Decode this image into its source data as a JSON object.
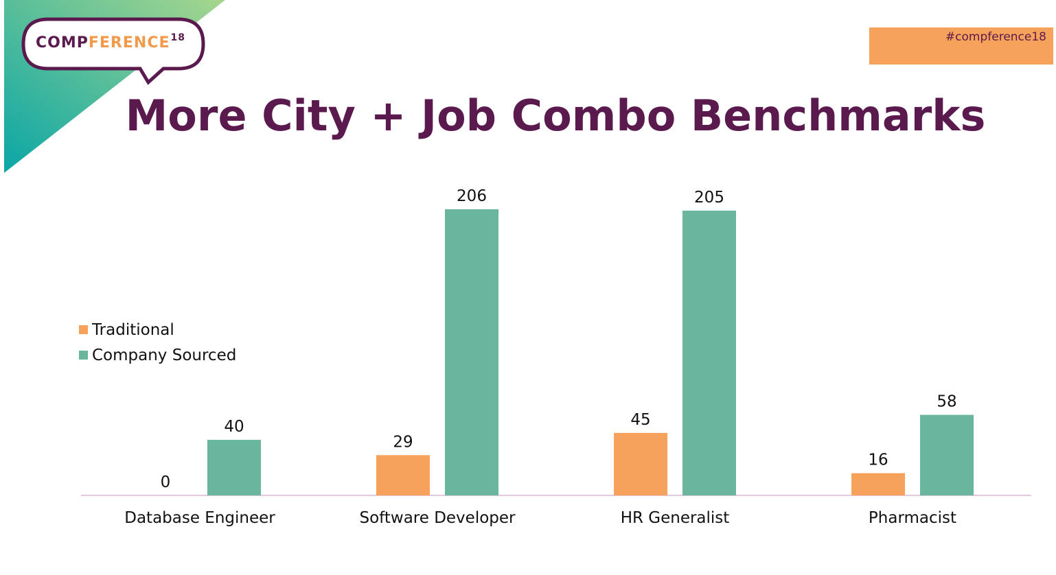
{
  "slide": {
    "title": "More City + Job Combo Benchmarks",
    "hashtag": "#compference18",
    "logo": {
      "part_a": "COMP",
      "part_b": "FERENCE",
      "superscript": "18"
    }
  },
  "colors": {
    "traditional": "#f6a25a",
    "company_sourced": "#69b59d",
    "title": "#5b1a4e",
    "triangle_start": "#0aa6a6",
    "triangle_end": "#a6d68e",
    "axis": "#e3c8e0"
  },
  "chart_data": {
    "type": "bar",
    "categories": [
      "Database Engineer",
      "Software Developer",
      "HR Generalist",
      "Pharmacist"
    ],
    "series": [
      {
        "name": "Traditional",
        "values": [
          0,
          29,
          45,
          16
        ]
      },
      {
        "name": "Company Sourced",
        "values": [
          40,
          206,
          205,
          58
        ]
      }
    ],
    "data_labels": true,
    "ylim": [
      0,
      206
    ],
    "grid": false,
    "legend": "left"
  }
}
